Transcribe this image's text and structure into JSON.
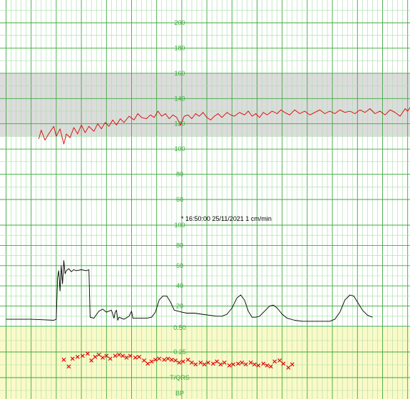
{
  "colors": {
    "grid_major": "#3caa3c",
    "grid_minor": "#a8dca8",
    "normal_band": "#dcdcdc",
    "fhr_trace": "#e00000",
    "toco_trace": "#000000",
    "st_band": "#fafac8",
    "st_marker": "#e00000",
    "scale_text": "#3caa3c"
  },
  "fhr_panel": {
    "scale_labels": [
      "200",
      "180",
      "160",
      "140",
      "120",
      "100",
      "80",
      "60"
    ],
    "normal_band_bpm": [
      110,
      160
    ],
    "trace": [
      [
        0.2,
        108
      ],
      [
        0.3,
        115
      ],
      [
        0.45,
        107
      ],
      [
        0.6,
        112
      ],
      [
        0.8,
        118
      ],
      [
        0.9,
        110
      ],
      [
        1.05,
        116
      ],
      [
        1.2,
        104
      ],
      [
        1.3,
        112
      ],
      [
        1.45,
        109
      ],
      [
        1.6,
        117
      ],
      [
        1.75,
        112
      ],
      [
        1.9,
        119
      ],
      [
        2.05,
        113
      ],
      [
        2.2,
        118
      ],
      [
        2.4,
        114
      ],
      [
        2.55,
        120
      ],
      [
        2.7,
        116
      ],
      [
        2.85,
        121
      ],
      [
        3.0,
        118
      ],
      [
        3.15,
        123
      ],
      [
        3.3,
        119
      ],
      [
        3.45,
        124
      ],
      [
        3.6,
        121
      ],
      [
        3.8,
        126
      ],
      [
        4.0,
        123
      ],
      [
        4.15,
        128
      ],
      [
        4.3,
        125
      ],
      [
        4.5,
        124
      ],
      [
        4.65,
        127
      ],
      [
        4.8,
        125
      ],
      [
        4.95,
        130
      ],
      [
        5.1,
        126
      ],
      [
        5.25,
        128
      ],
      [
        5.4,
        124
      ],
      [
        5.55,
        127
      ],
      [
        5.7,
        125
      ],
      [
        5.85,
        119
      ],
      [
        6.0,
        126
      ],
      [
        6.15,
        127
      ],
      [
        6.3,
        124
      ],
      [
        6.45,
        128
      ],
      [
        6.6,
        126
      ],
      [
        6.75,
        129
      ],
      [
        6.9,
        125
      ],
      [
        7.05,
        123
      ],
      [
        7.2,
        126
      ],
      [
        7.35,
        128
      ],
      [
        7.5,
        125
      ],
      [
        7.7,
        129
      ],
      [
        7.85,
        127
      ],
      [
        8.0,
        126
      ],
      [
        8.2,
        129
      ],
      [
        8.4,
        127
      ],
      [
        8.55,
        130
      ],
      [
        8.7,
        126
      ],
      [
        8.85,
        128
      ],
      [
        9.0,
        125
      ],
      [
        9.15,
        129
      ],
      [
        9.3,
        127
      ],
      [
        9.5,
        130
      ],
      [
        9.7,
        128
      ],
      [
        9.85,
        131
      ],
      [
        10.0,
        129
      ],
      [
        10.2,
        127
      ],
      [
        10.4,
        131
      ],
      [
        10.6,
        128
      ],
      [
        10.8,
        130
      ],
      [
        11.0,
        127
      ],
      [
        11.2,
        129
      ],
      [
        11.4,
        131
      ],
      [
        11.6,
        128
      ],
      [
        11.8,
        130
      ],
      [
        12.0,
        128
      ],
      [
        12.2,
        131
      ],
      [
        12.4,
        129
      ],
      [
        12.6,
        130
      ],
      [
        12.8,
        128
      ],
      [
        13.0,
        131
      ],
      [
        13.2,
        129
      ],
      [
        13.4,
        132
      ],
      [
        13.6,
        128
      ],
      [
        13.8,
        130
      ],
      [
        14.0,
        127
      ],
      [
        14.2,
        131
      ],
      [
        14.4,
        129
      ],
      [
        14.6,
        126
      ],
      [
        14.8,
        132
      ],
      [
        14.9,
        130
      ],
      [
        15.0,
        133
      ],
      [
        15.15,
        130
      ],
      [
        15.3,
        131
      ],
      [
        15.45,
        137
      ],
      [
        15.55,
        139
      ],
      [
        15.7,
        132
      ],
      [
        15.85,
        130
      ],
      [
        16.0,
        128
      ],
      [
        16.15,
        131
      ],
      [
        16.3,
        129
      ],
      [
        16.4,
        128
      ]
    ]
  },
  "timestamp_text": "* 16:50:00 25/11/2021  1 cm/min",
  "toco_panel": {
    "scale_labels": [
      "100",
      "80",
      "60",
      "40",
      "20"
    ],
    "trace": [
      [
        0.0,
        7
      ],
      [
        0.5,
        7
      ],
      [
        1.0,
        7
      ],
      [
        1.5,
        6.5
      ],
      [
        1.9,
        6
      ],
      [
        2.0,
        7
      ],
      [
        2.05,
        48
      ],
      [
        2.1,
        55
      ],
      [
        2.15,
        35
      ],
      [
        2.2,
        60
      ],
      [
        2.25,
        42
      ],
      [
        2.3,
        65
      ],
      [
        2.35,
        52
      ],
      [
        2.4,
        55
      ],
      [
        2.5,
        57
      ],
      [
        2.6,
        54
      ],
      [
        2.7,
        56
      ],
      [
        2.8,
        55
      ],
      [
        3.0,
        56
      ],
      [
        3.2,
        55
      ],
      [
        3.3,
        56
      ],
      [
        3.35,
        9
      ],
      [
        3.5,
        8
      ],
      [
        3.7,
        15
      ],
      [
        3.85,
        17
      ],
      [
        4.0,
        14
      ],
      [
        4.2,
        16
      ],
      [
        4.3,
        8
      ],
      [
        4.35,
        14
      ],
      [
        4.4,
        16
      ],
      [
        4.45,
        6
      ],
      [
        4.5,
        9
      ],
      [
        4.7,
        7
      ],
      [
        4.9,
        10
      ],
      [
        5.0,
        15
      ],
      [
        5.05,
        8
      ],
      [
        5.3,
        8
      ],
      [
        5.6,
        8
      ],
      [
        5.8,
        9
      ],
      [
        5.95,
        14
      ],
      [
        6.1,
        26
      ],
      [
        6.25,
        30
      ],
      [
        6.4,
        30
      ],
      [
        6.55,
        24
      ],
      [
        6.7,
        16
      ],
      [
        6.85,
        15
      ],
      [
        7.0,
        14
      ],
      [
        7.2,
        13
      ],
      [
        7.5,
        13
      ],
      [
        7.8,
        12
      ],
      [
        8.1,
        11
      ],
      [
        8.4,
        10
      ],
      [
        8.6,
        10
      ],
      [
        8.8,
        12
      ],
      [
        9.0,
        18
      ],
      [
        9.2,
        28
      ],
      [
        9.35,
        31
      ],
      [
        9.5,
        26
      ],
      [
        9.65,
        15
      ],
      [
        9.8,
        9
      ],
      [
        9.95,
        9
      ],
      [
        10.1,
        10
      ],
      [
        10.3,
        15
      ],
      [
        10.5,
        20
      ],
      [
        10.65,
        21
      ],
      [
        10.8,
        18
      ],
      [
        11.0,
        12
      ],
      [
        11.2,
        8
      ],
      [
        11.5,
        6
      ],
      [
        11.8,
        5
      ],
      [
        12.1,
        5
      ],
      [
        12.4,
        5
      ],
      [
        12.7,
        5
      ],
      [
        12.9,
        5
      ],
      [
        13.1,
        7
      ],
      [
        13.3,
        14
      ],
      [
        13.5,
        26
      ],
      [
        13.7,
        31
      ],
      [
        13.85,
        30
      ],
      [
        14.0,
        24
      ],
      [
        14.2,
        16
      ],
      [
        14.4,
        11
      ],
      [
        14.6,
        9
      ]
    ]
  },
  "st_panel": {
    "scale_labels": [
      "0.50",
      "0.25",
      "T/QRS",
      "BP"
    ],
    "markers": [
      [
        1.35,
        0.17
      ],
      [
        1.55,
        0.1
      ],
      [
        1.7,
        0.18
      ],
      [
        1.9,
        0.2
      ],
      [
        2.1,
        0.21
      ],
      [
        2.3,
        0.23
      ],
      [
        2.45,
        0.16
      ],
      [
        2.6,
        0.2
      ],
      [
        2.75,
        0.22
      ],
      [
        2.9,
        0.19
      ],
      [
        3.05,
        0.21
      ],
      [
        3.2,
        0.18
      ],
      [
        3.4,
        0.21
      ],
      [
        3.55,
        0.22
      ],
      [
        3.7,
        0.21
      ],
      [
        3.85,
        0.19
      ],
      [
        4.0,
        0.21
      ],
      [
        4.2,
        0.19
      ],
      [
        4.35,
        0.2
      ],
      [
        4.55,
        0.16
      ],
      [
        4.7,
        0.13
      ],
      [
        4.85,
        0.15
      ],
      [
        5.0,
        0.17
      ],
      [
        5.15,
        0.18
      ],
      [
        5.35,
        0.17
      ],
      [
        5.5,
        0.18
      ],
      [
        5.65,
        0.17
      ],
      [
        5.8,
        0.16
      ],
      [
        5.95,
        0.14
      ],
      [
        6.1,
        0.15
      ],
      [
        6.3,
        0.17
      ],
      [
        6.45,
        0.14
      ],
      [
        6.6,
        0.12
      ],
      [
        6.8,
        0.14
      ],
      [
        6.95,
        0.12
      ],
      [
        7.1,
        0.14
      ],
      [
        7.3,
        0.13
      ],
      [
        7.45,
        0.15
      ],
      [
        7.6,
        0.12
      ],
      [
        7.75,
        0.14
      ],
      [
        7.95,
        0.11
      ],
      [
        8.1,
        0.12
      ],
      [
        8.3,
        0.13
      ],
      [
        8.45,
        0.14
      ],
      [
        8.6,
        0.12
      ],
      [
        8.8,
        0.14
      ],
      [
        8.95,
        0.12
      ],
      [
        9.1,
        0.11
      ],
      [
        9.3,
        0.13
      ],
      [
        9.45,
        0.11
      ],
      [
        9.6,
        0.1
      ],
      [
        9.75,
        0.15
      ],
      [
        9.95,
        0.16
      ],
      [
        10.1,
        0.13
      ],
      [
        10.3,
        0.09
      ],
      [
        10.45,
        0.12
      ]
    ]
  }
}
